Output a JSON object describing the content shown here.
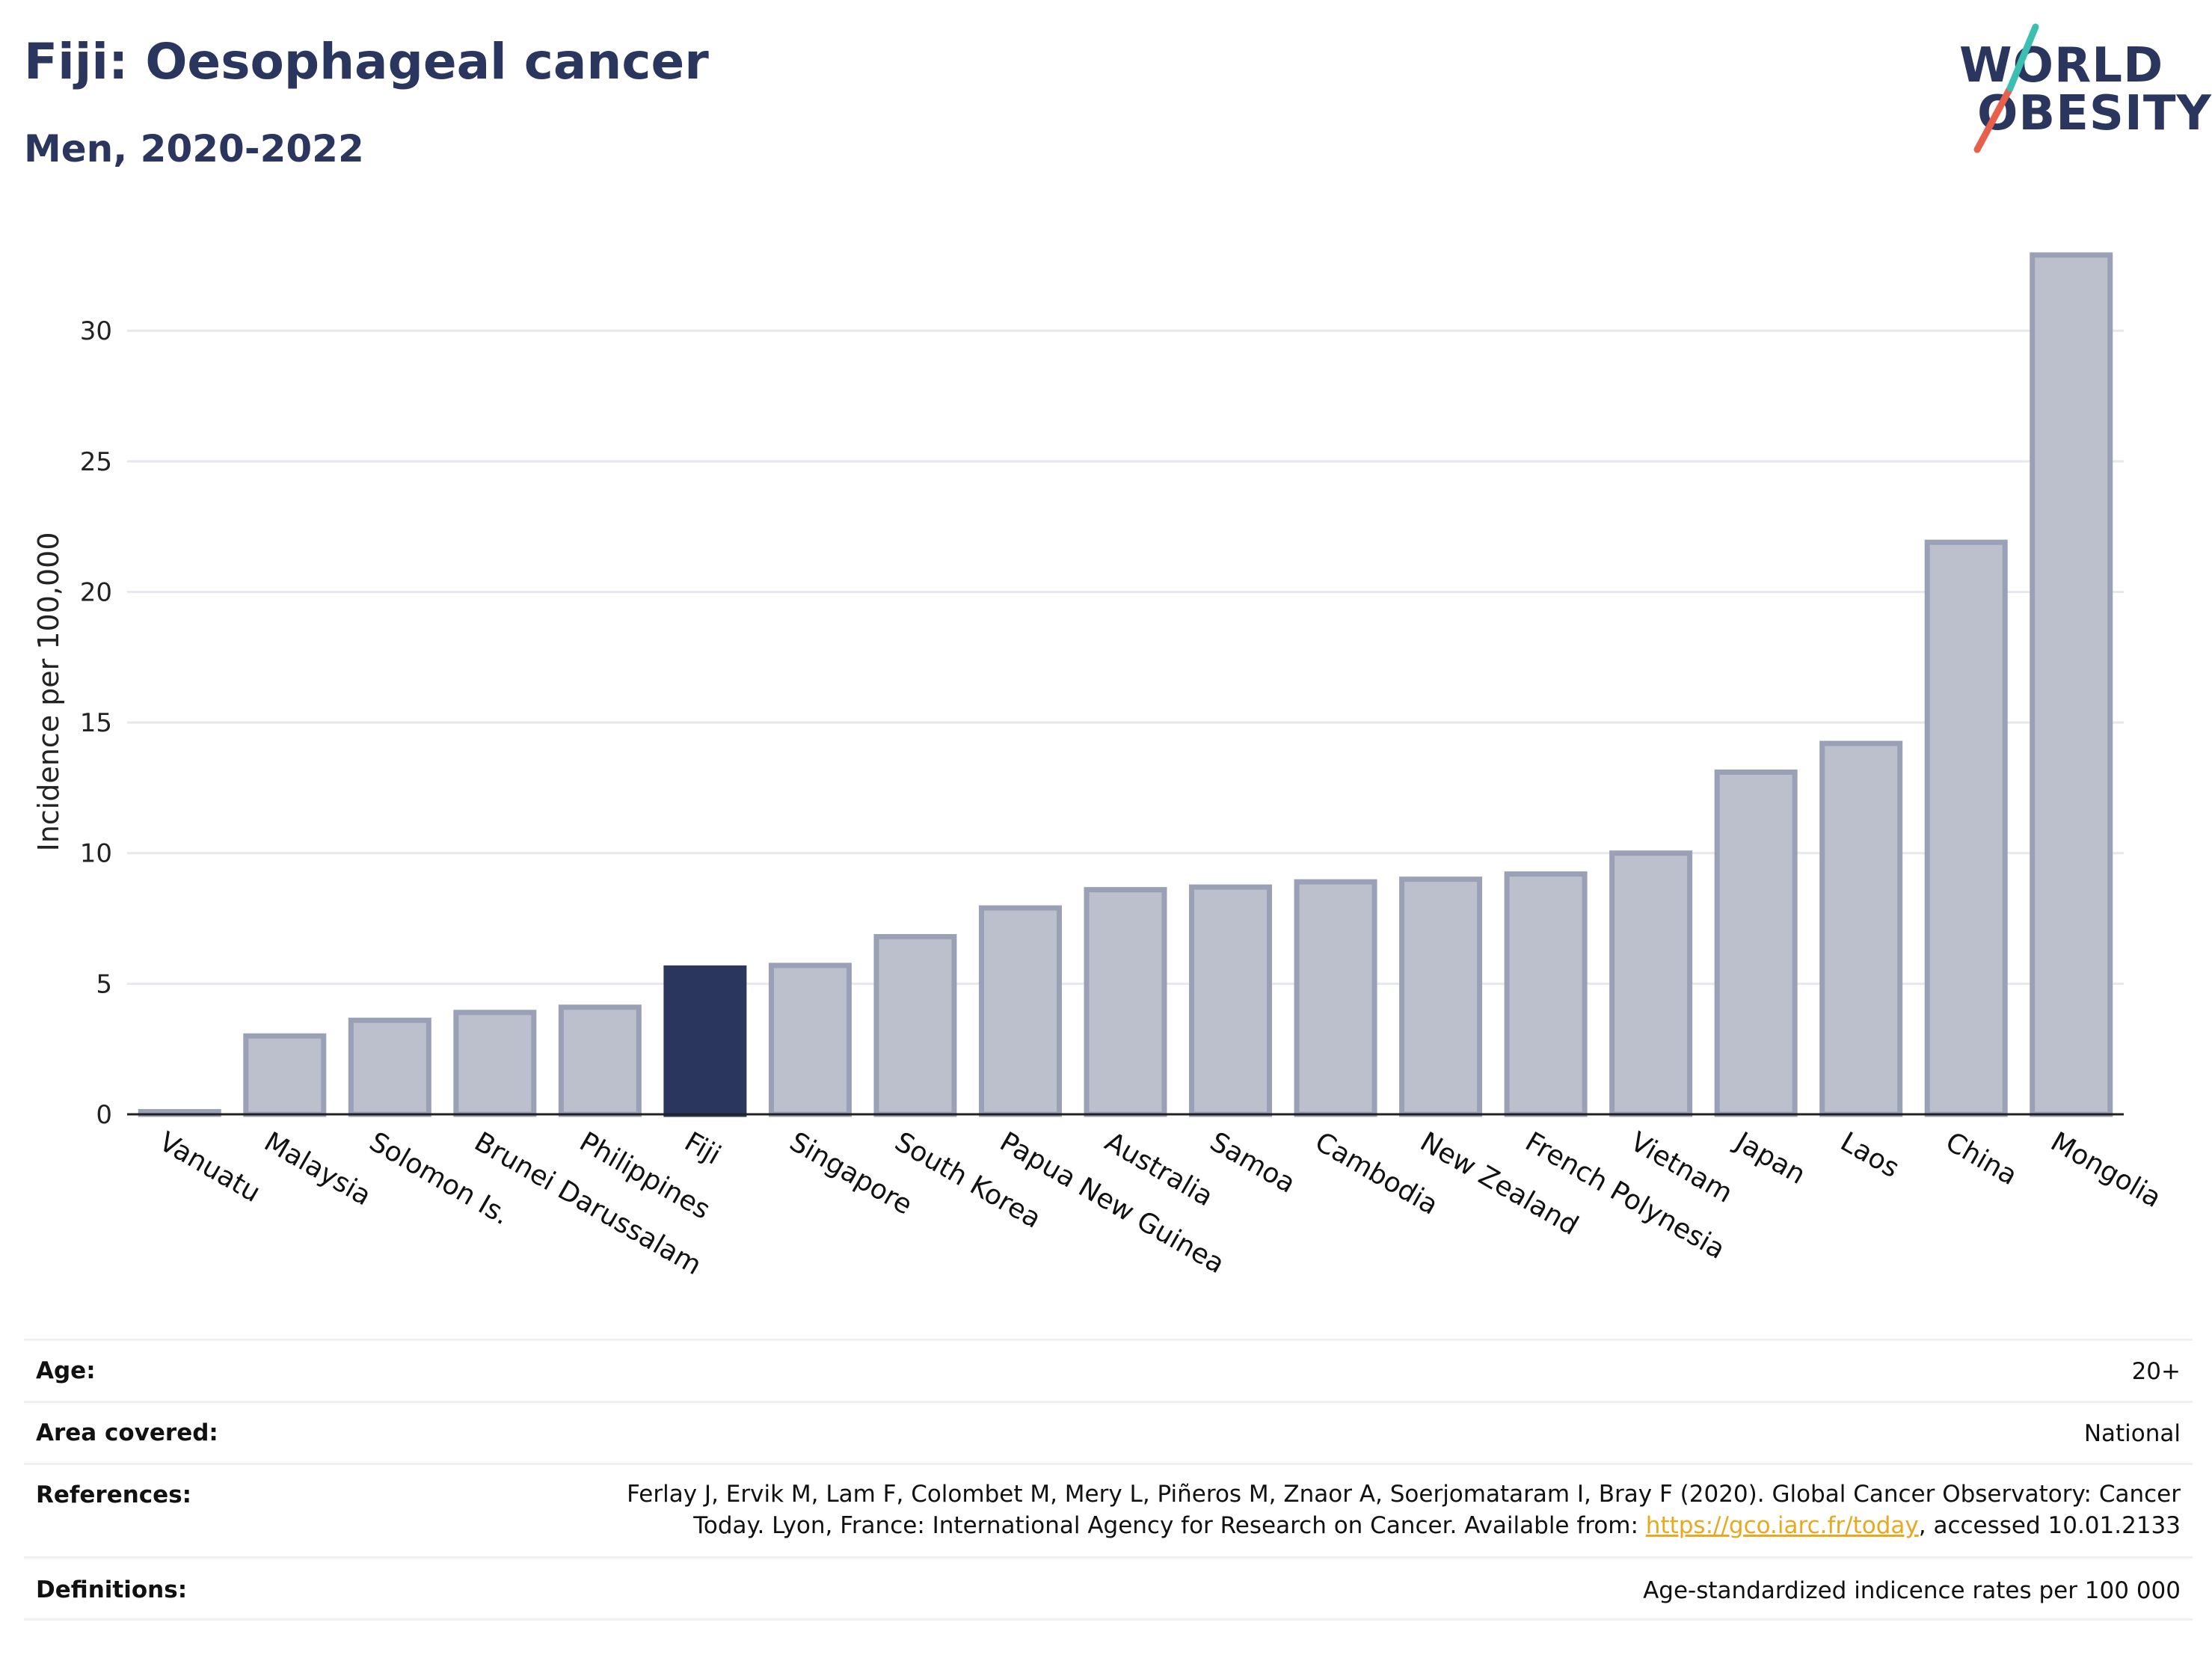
{
  "header": {
    "title": "Fiji: Oesophageal cancer",
    "subtitle": "Men, 2020-2022"
  },
  "logo": {
    "line1": "WORLD",
    "line2": "OBESITY",
    "text_color": "#2b365e",
    "slash_colors": [
      "#e8604c",
      "#3bbfb0"
    ]
  },
  "chart_data": {
    "type": "bar",
    "ylabel": "Incidence per 100,000",
    "xlabel": "",
    "ylim": [
      0,
      33.5
    ],
    "yticks": [
      0,
      5,
      10,
      15,
      20,
      25,
      30
    ],
    "grid": true,
    "highlight": "Fiji",
    "colors": {
      "bar": "#bcc0cd",
      "bar_edge": "#9aa0b5",
      "highlight": "#2b365e",
      "grid": "#e6e8ee"
    },
    "categories": [
      "Vanuatu",
      "Malaysia",
      "Solomon Is.",
      "Brunei Darussalam",
      "Philippines",
      "Fiji",
      "Singapore",
      "South Korea",
      "Papua New Guinea",
      "Australia",
      "Samoa",
      "Cambodia",
      "New Zealand",
      "French Polynesia",
      "Vietnam",
      "Japan",
      "Laos",
      "China",
      "Mongolia"
    ],
    "values": [
      0.1,
      3.0,
      3.6,
      3.9,
      4.1,
      5.6,
      5.7,
      6.8,
      7.9,
      8.6,
      8.7,
      8.9,
      9.0,
      9.2,
      10.0,
      13.1,
      14.2,
      21.9,
      32.9
    ]
  },
  "info": {
    "age": {
      "label": "Age:",
      "value": "20+"
    },
    "area": {
      "label": "Area covered:",
      "value": "National"
    },
    "references": {
      "label": "References:",
      "line1": "Ferlay J, Ervik M, Lam F, Colombet M, Mery L, Piñeros M, Znaor A, Soerjomataram I, Bray F (2020). Global Cancer Observatory: Cancer",
      "line2_pre": "Today. Lyon, France: International Agency for Research on Cancer. Available from: ",
      "link": "https://gco.iarc.fr/today",
      "line2_post": ", accessed 10.01.2133"
    },
    "definitions": {
      "label": "Definitions:",
      "value": "Age-standardized indicence rates per 100 000"
    }
  }
}
